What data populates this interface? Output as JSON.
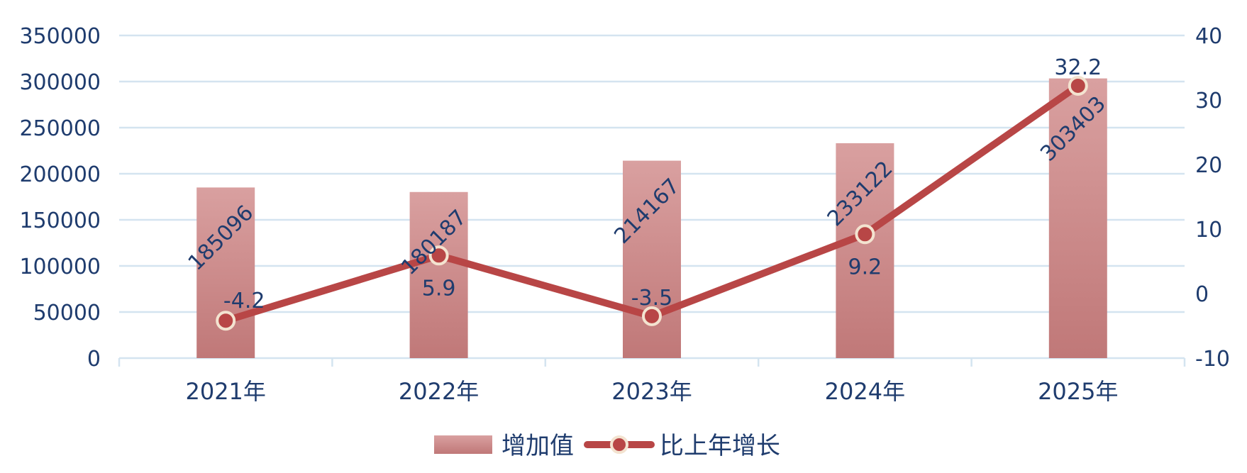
{
  "chart_data": {
    "type": "bar+line",
    "categories": [
      "2021年",
      "2022年",
      "2023年",
      "2024年",
      "2025年"
    ],
    "series": [
      {
        "name": "增加值",
        "type": "bar",
        "axis": "left",
        "values": [
          185096,
          180187,
          214167,
          233122,
          303403
        ]
      },
      {
        "name": "比上年增长",
        "type": "line",
        "axis": "right",
        "values": [
          -4.2,
          5.9,
          -3.5,
          9.2,
          32.2
        ]
      }
    ],
    "y_left": {
      "min": 0,
      "max": 350000,
      "step": 50000
    },
    "y_right": {
      "min": -10,
      "max": 40,
      "step": 10
    },
    "grid": true,
    "legend_position": "bottom",
    "colors": {
      "bar_top": "#d9a0a0",
      "bar_bottom": "#c07878",
      "line": "#b84646",
      "marker_fill": "#b84646",
      "marker_stroke": "#f3e3d0",
      "text": "#1f3c6e",
      "grid": "#d4e4f0"
    }
  }
}
